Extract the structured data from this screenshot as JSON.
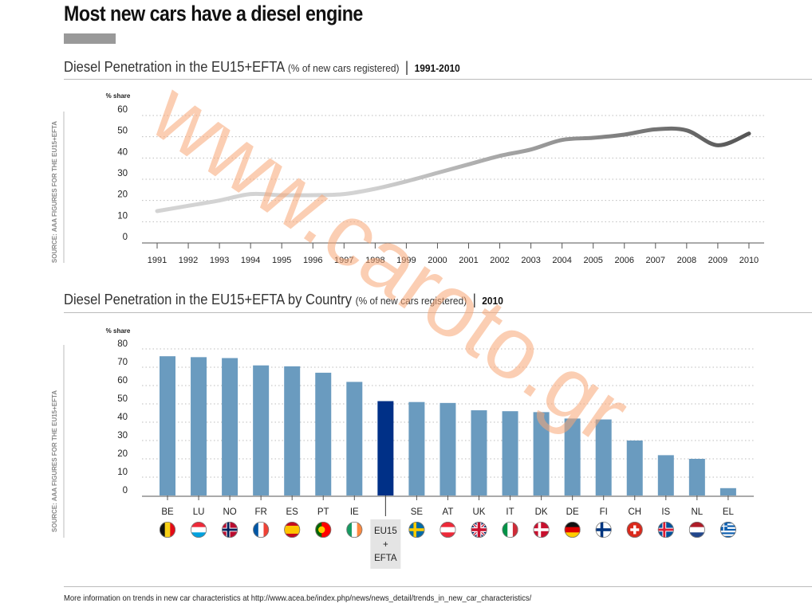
{
  "page": {
    "title": "Most new cars have a diesel engine",
    "footer": "More information on trends in new car characteristics at http://www.acea.be/index.php/news/news_detail/trends_in_new_car_characteristics/",
    "watermark": "www.caroto.gr",
    "colors": {
      "title_bar": "#999999",
      "bar": "#6a9bbf",
      "bar_highlight": "#003087",
      "line_light": "#d3d3d3",
      "line_dark": "#555555",
      "watermark": "#f7a574"
    }
  },
  "chart_data": [
    {
      "type": "line",
      "title": "Diesel Penetration in the EU15+EFTA",
      "unit_note": "(% of new cars registered)",
      "period": "1991-2010",
      "ylabel": "% share",
      "source_label": "SOURCE: AAA FIGURES FOR THE EU15+EFTA",
      "x": [
        "1991",
        "1992",
        "1993",
        "1994",
        "1995",
        "1996",
        "1997",
        "1998",
        "1999",
        "2000",
        "2001",
        "2002",
        "2003",
        "2004",
        "2005",
        "2006",
        "2007",
        "2008",
        "2009",
        "2010"
      ],
      "series": [
        {
          "values": [
            15,
            17.5,
            20,
            23,
            22.5,
            22.5,
            23,
            25.5,
            29,
            33,
            37,
            41,
            44,
            48.5,
            49.5,
            51,
            53.5,
            53,
            46,
            51.5
          ]
        }
      ],
      "ylim": [
        0,
        60
      ],
      "yticks": [
        0,
        10,
        20,
        30,
        40,
        50,
        60
      ],
      "grid": true
    },
    {
      "type": "bar",
      "title": "Diesel Penetration in the EU15+EFTA by Country",
      "unit_note": "(% of new cars registered)",
      "period": "2010",
      "ylabel": "% share",
      "source_label": "SOURCE: AAA FIGURES FOR THE EU15+EFTA",
      "categories": [
        "BE",
        "LU",
        "NO",
        "FR",
        "ES",
        "PT",
        "IE",
        "EU15+EFTA",
        "SE",
        "AT",
        "UK",
        "IT",
        "DK",
        "DE",
        "FI",
        "CH",
        "IS",
        "NL",
        "EL"
      ],
      "values": [
        76,
        75.5,
        75,
        71,
        70.5,
        67,
        62,
        51.5,
        51,
        50.5,
        46.5,
        46,
        45.5,
        42,
        41.5,
        30,
        22,
        20,
        4
      ],
      "highlight": "EU15+EFTA",
      "highlight_lines": [
        "EU15",
        "+",
        "EFTA"
      ],
      "ylim": [
        0,
        80
      ],
      "yticks": [
        0,
        10,
        20,
        30,
        40,
        50,
        60,
        70,
        80
      ],
      "grid": true,
      "flags": {
        "BE": {
          "type": "v3",
          "colors": [
            "#111111",
            "#f7d117",
            "#e30a17"
          ]
        },
        "LU": {
          "type": "h3",
          "colors": [
            "#ed2939",
            "#ffffff",
            "#00a1de"
          ]
        },
        "NO": {
          "type": "nordic",
          "colors": [
            "#ba0c2f",
            "#ffffff",
            "#00205b"
          ]
        },
        "FR": {
          "type": "v3",
          "colors": [
            "#0055a4",
            "#ffffff",
            "#ef4135"
          ]
        },
        "ES": {
          "type": "h3w",
          "colors": [
            "#c60b1e",
            "#ffc400",
            "#c60b1e"
          ]
        },
        "PT": {
          "type": "v2pt",
          "colors": [
            "#006600",
            "#ff0000",
            "#ffcc00"
          ]
        },
        "IE": {
          "type": "v3",
          "colors": [
            "#169b62",
            "#ffffff",
            "#ff883e"
          ]
        },
        "SE": {
          "type": "nordic1",
          "colors": [
            "#006aa7",
            "#fecc00"
          ]
        },
        "AT": {
          "type": "h3",
          "colors": [
            "#ed2939",
            "#ffffff",
            "#ed2939"
          ]
        },
        "UK": {
          "type": "uk",
          "colors": [
            "#012169",
            "#ffffff",
            "#c8102e"
          ]
        },
        "IT": {
          "type": "v3",
          "colors": [
            "#009246",
            "#ffffff",
            "#ce2b37"
          ]
        },
        "DK": {
          "type": "nordic1",
          "colors": [
            "#c8102e",
            "#ffffff"
          ]
        },
        "DE": {
          "type": "h3",
          "colors": [
            "#111111",
            "#dd0000",
            "#ffce00"
          ]
        },
        "FI": {
          "type": "nordic1",
          "colors": [
            "#ffffff",
            "#003580"
          ]
        },
        "CH": {
          "type": "swiss",
          "colors": [
            "#da291c",
            "#ffffff"
          ]
        },
        "IS": {
          "type": "nordic",
          "colors": [
            "#02529c",
            "#ffffff",
            "#dc1e35"
          ]
        },
        "NL": {
          "type": "h3",
          "colors": [
            "#ae1c28",
            "#ffffff",
            "#21468b"
          ]
        },
        "EL": {
          "type": "greek",
          "colors": [
            "#0d5eaf",
            "#ffffff"
          ]
        }
      }
    }
  ]
}
